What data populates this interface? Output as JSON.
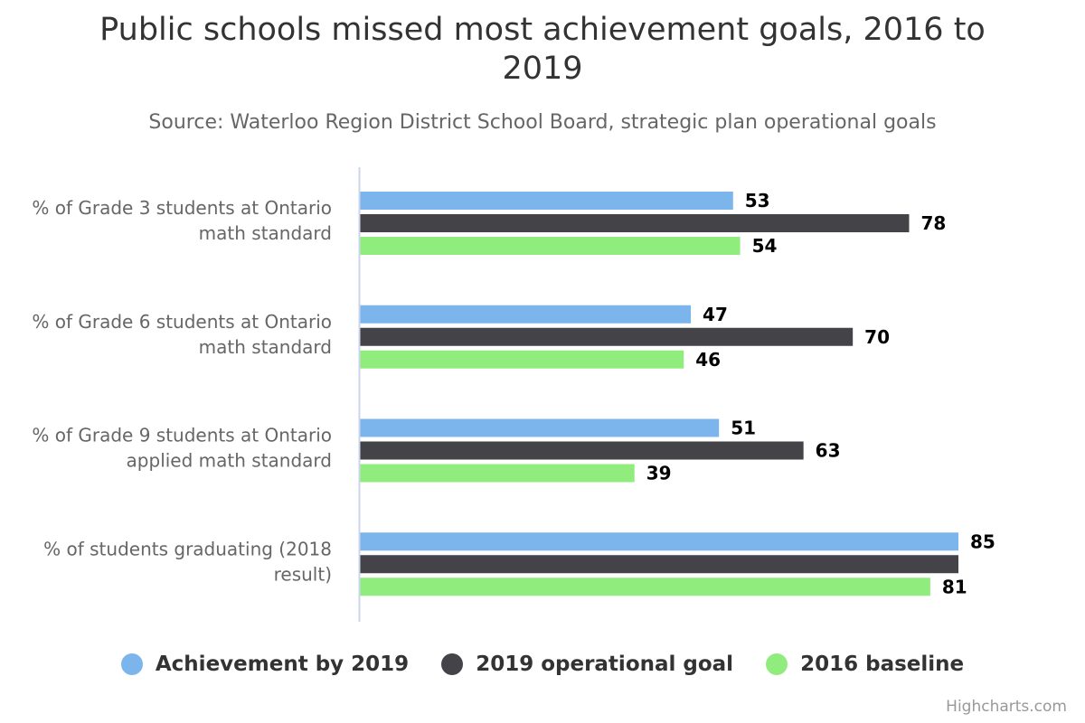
{
  "colors": {
    "achievement": "#7cb5ec",
    "goal": "#434348",
    "baseline": "#90ed7d",
    "axis_line": "#ccd6eb"
  },
  "credits": "Highcharts.com",
  "chart_data": {
    "type": "bar",
    "orientation": "horizontal",
    "title": "Public schools missed most achievement goals, 2016 to 2019",
    "subtitle": "Source: Waterloo Region District School Board, strategic plan operational goals",
    "categories": [
      [
        "% of Grade 3 students at Ontario",
        "math standard"
      ],
      [
        "% of Grade 6 students at Ontario",
        "math standard"
      ],
      [
        "% of Grade 9 students at Ontario",
        "applied math standard"
      ],
      [
        "% of students graduating (2018",
        "result)"
      ]
    ],
    "series": [
      {
        "name": "Achievement by 2019",
        "color_key": "achievement",
        "values": [
          53,
          47,
          51,
          85
        ],
        "labels": [
          "53",
          "47",
          "51",
          "85"
        ]
      },
      {
        "name": "2019 operational goal",
        "color_key": "goal",
        "values": [
          78,
          70,
          63,
          85
        ],
        "labels": [
          "78",
          "70",
          "63",
          ""
        ]
      },
      {
        "name": "2016 baseline",
        "color_key": "baseline",
        "values": [
          54,
          46,
          39,
          81
        ],
        "labels": [
          "54",
          "46",
          "39",
          "81"
        ]
      }
    ],
    "xlim": [
      0,
      85
    ],
    "grid": false,
    "legend_position": "bottom-center"
  }
}
